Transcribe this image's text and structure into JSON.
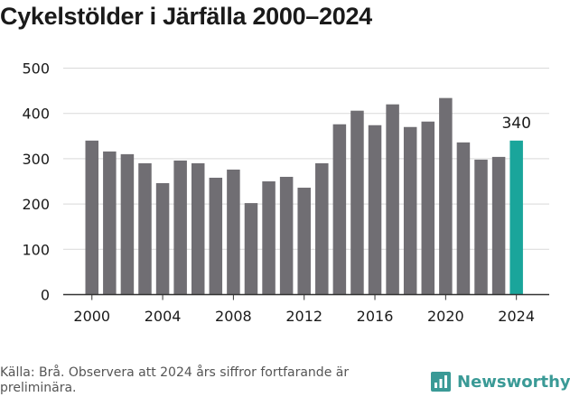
{
  "title": "Cykelstölder i Järfälla 2000–2024",
  "source": "Källa: Brå. Observera att 2024 års siffror fortfarande är preliminära.",
  "brand": {
    "name": "Newsworthy",
    "icon": "newsworthy-logo-icon",
    "color": "#3a9a96"
  },
  "colors": {
    "bar": "#706e73",
    "highlight": "#1aa59b",
    "grid": "#d9d9d9",
    "axis": "#333333"
  },
  "chart_data": {
    "type": "bar",
    "title": "Cykelstölder i Järfälla 2000–2024",
    "xlabel": "",
    "ylabel": "",
    "categories": [
      "2000",
      "2001",
      "2002",
      "2003",
      "2004",
      "2005",
      "2006",
      "2007",
      "2008",
      "2009",
      "2010",
      "2011",
      "2012",
      "2013",
      "2014",
      "2015",
      "2016",
      "2017",
      "2018",
      "2019",
      "2020",
      "2021",
      "2022",
      "2023",
      "2024"
    ],
    "values": [
      340,
      316,
      310,
      290,
      246,
      296,
      290,
      258,
      276,
      202,
      250,
      260,
      236,
      290,
      376,
      406,
      374,
      420,
      370,
      382,
      434,
      336,
      298,
      304,
      340
    ],
    "highlight_category": "2024",
    "highlight_label": "340",
    "ylim": [
      0,
      500
    ],
    "yticks": [
      0,
      100,
      200,
      300,
      400,
      500
    ],
    "xticks": [
      "2000",
      "2004",
      "2008",
      "2012",
      "2016",
      "2020",
      "2024"
    ],
    "grid": true,
    "legend": "none"
  }
}
